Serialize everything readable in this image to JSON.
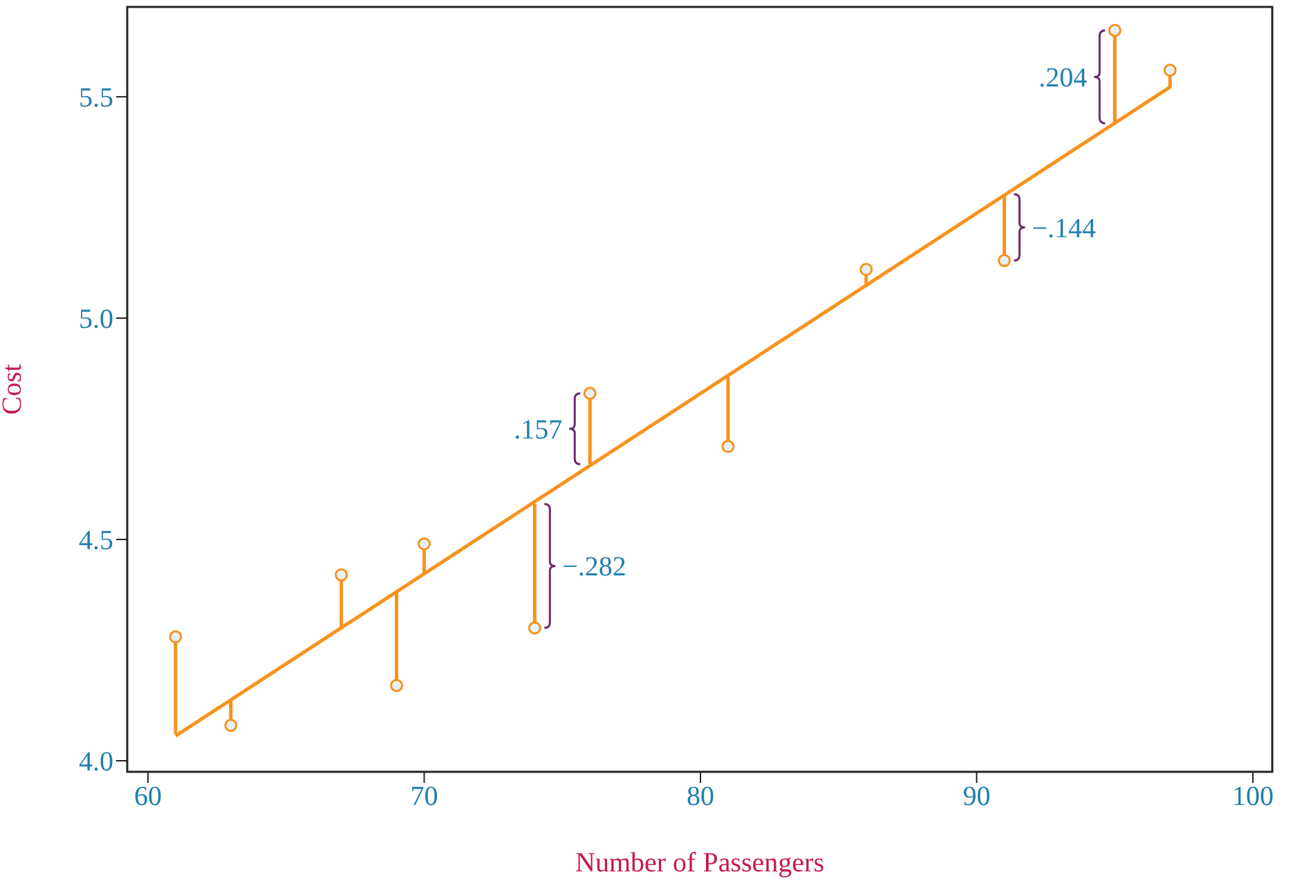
{
  "chart_data": {
    "type": "scatter",
    "xlabel": "Number of Passengers",
    "ylabel": "Cost",
    "xlim": [
      59.25,
      100.7
    ],
    "ylim": [
      3.975,
      5.703
    ],
    "xticks": [
      60,
      70,
      80,
      90,
      100
    ],
    "yticks": [
      {
        "value": 4.0,
        "label": "4.0"
      },
      {
        "value": 4.5,
        "label": "4.5"
      },
      {
        "value": 5.0,
        "label": "5.0"
      },
      {
        "value": 5.5,
        "label": "5.5"
      }
    ],
    "series": [
      {
        "type": "line",
        "color": "#f7931e",
        "x": [
          61,
          97
        ],
        "values": [
          4.056,
          5.522
        ]
      },
      {
        "color": "#f7931e",
        "marker": "circle",
        "x": [
          61,
          63,
          67,
          69,
          70,
          74,
          76,
          81,
          86,
          91,
          95,
          97
        ],
        "values": [
          4.28,
          4.08,
          4.42,
          4.17,
          4.49,
          4.3,
          4.83,
          4.71,
          5.11,
          5.13,
          5.65,
          5.56
        ],
        "errors": [
          [
            4.06,
            4.28
          ],
          [
            4.08,
            4.14
          ],
          [
            4.3,
            4.42
          ],
          [
            4.17,
            4.38
          ],
          [
            4.42,
            4.49
          ],
          [
            4.3,
            4.58
          ],
          [
            4.67,
            4.83
          ],
          [
            4.71,
            4.87
          ],
          [
            5.07,
            5.11
          ],
          [
            5.13,
            5.28
          ],
          [
            5.44,
            5.65
          ],
          [
            5.52,
            5.56
          ]
        ]
      }
    ],
    "annotations": [
      {
        "text": ".204",
        "x": 95,
        "y": 5.65
      },
      {
        "text": "−.144",
        "x": 91,
        "y": 5.13
      },
      {
        "text": ".157",
        "x": 76,
        "y": 4.83
      },
      {
        "text": "−.282",
        "x": 74,
        "y": 4.3
      }
    ]
  }
}
